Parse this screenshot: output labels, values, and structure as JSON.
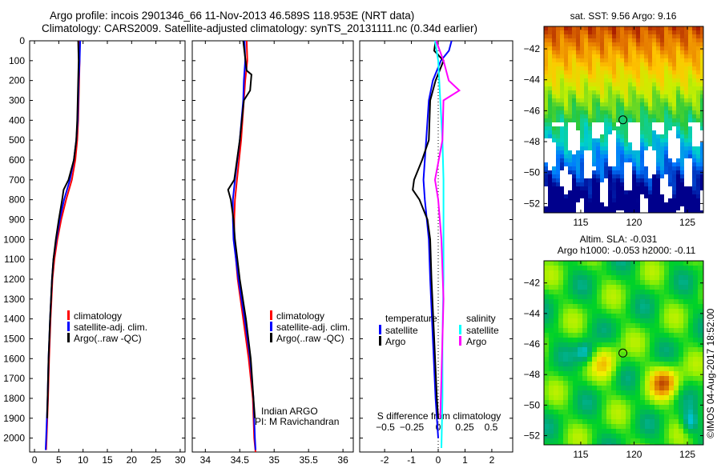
{
  "title_line1": "Argo profile: incois 2901346_66 11-Nov-2013 46.589S 118.953E (NRT data)",
  "title_line2": "Climatology: CARS2009. Satellite-adjusted climatology: synTS_20131111.nc (0.34d earlier)",
  "credit": "Indian ARGO",
  "pi": "PI: M Ravichandran",
  "watermark": "©IMOS 04-Aug-2017 18:52:00",
  "colors": {
    "climatology": "#ff0000",
    "satellite": "#0000ff",
    "argo": "#000000",
    "sal_satellite": "#00ffff",
    "sal_argo": "#ff00ff"
  },
  "chart_data": [
    {
      "type": "line",
      "id": "temperature",
      "xlabel": "temperature (deg C)",
      "ylabel": "",
      "xlim": [
        -1,
        31
      ],
      "ylim": [
        2070,
        0
      ],
      "xticks": [
        0,
        5,
        10,
        15,
        20,
        25,
        30
      ],
      "yticks": [
        0,
        100,
        200,
        300,
        400,
        500,
        600,
        700,
        800,
        900,
        1000,
        1100,
        1200,
        1300,
        1400,
        1500,
        1600,
        1700,
        1800,
        1900,
        2000
      ],
      "legend": [
        "climatology",
        "satellite-adj. clim.",
        "Argo(..raw -QC)"
      ],
      "series": [
        {
          "name": "climatology",
          "color": "#ff0000",
          "depth": [
            0,
            100,
            200,
            300,
            400,
            500,
            600,
            700,
            800,
            900,
            1000,
            1100,
            1200,
            1400,
            1600,
            1800,
            2000,
            2060
          ],
          "values": [
            9.3,
            9.3,
            9.2,
            9.1,
            9.0,
            8.8,
            8.4,
            7.7,
            6.5,
            5.5,
            4.7,
            4.1,
            3.7,
            3.3,
            3.0,
            2.8,
            2.5,
            2.4
          ]
        },
        {
          "name": "satellite-adj. clim.",
          "color": "#0000ff",
          "depth": [
            0,
            100,
            200,
            300,
            400,
            500,
            600,
            700,
            800,
            900,
            1000,
            1100,
            1200,
            1400,
            1600,
            1800,
            2000,
            2060
          ],
          "values": [
            9.4,
            9.3,
            9.1,
            9.0,
            8.9,
            8.6,
            8.1,
            7.3,
            6.1,
            5.2,
            4.5,
            3.9,
            3.6,
            3.2,
            2.9,
            2.7,
            2.4,
            2.3
          ]
        },
        {
          "name": "Argo",
          "color": "#000000",
          "depth": [
            0,
            100,
            200,
            300,
            400,
            500,
            600,
            700,
            750,
            800,
            900,
            1000,
            1100,
            1200,
            1400,
            1600,
            1800,
            1900
          ],
          "values": [
            9.0,
            9.1,
            9.0,
            8.9,
            8.8,
            8.6,
            8.1,
            7.0,
            6.0,
            5.7,
            5.0,
            4.4,
            3.9,
            3.6,
            3.2,
            2.9,
            2.7,
            2.6
          ]
        }
      ]
    },
    {
      "type": "line",
      "id": "salinity",
      "xlabel": "salinity",
      "xlim": [
        33.81,
        36.15
      ],
      "ylim": [
        2070,
        0
      ],
      "xticks": [
        34,
        34.5,
        35,
        35.5,
        36
      ],
      "legend": [
        "climatology",
        "satellite-adj. clim.",
        "Argo(..raw -QC)"
      ],
      "series": [
        {
          "name": "climatology",
          "color": "#ff0000",
          "depth": [
            0,
            100,
            200,
            300,
            500,
            700,
            800,
            900,
            1000,
            1200,
            1400,
            1600,
            1800,
            2000,
            2070
          ],
          "values": [
            34.6,
            34.61,
            34.58,
            34.56,
            34.52,
            34.46,
            34.43,
            34.42,
            34.42,
            34.47,
            34.55,
            34.63,
            34.69,
            34.71,
            34.73
          ]
        },
        {
          "name": "satellite-adj. clim.",
          "color": "#0000ff",
          "depth": [
            0,
            100,
            200,
            300,
            500,
            700,
            800,
            900,
            1000,
            1200,
            1400,
            1600,
            1800,
            2000,
            2060
          ],
          "values": [
            34.57,
            34.58,
            34.56,
            34.55,
            34.5,
            34.43,
            34.4,
            34.4,
            34.41,
            34.48,
            34.57,
            34.65,
            34.7,
            34.72,
            34.73
          ]
        },
        {
          "name": "Argo",
          "color": "#000000",
          "depth": [
            0,
            150,
            170,
            250,
            300,
            500,
            700,
            750,
            800,
            900,
            1000,
            1200,
            1400,
            1600,
            1800,
            1900
          ],
          "values": [
            34.55,
            34.6,
            34.67,
            34.65,
            34.56,
            34.5,
            34.42,
            34.33,
            34.37,
            34.41,
            34.43,
            34.5,
            34.59,
            34.66,
            34.7,
            34.72
          ]
        }
      ]
    },
    {
      "type": "line",
      "id": "difference",
      "xlabel": "T difference from climatology",
      "xlabel2": "S difference from climatology",
      "xlim": [
        -2.93,
        2.78
      ],
      "ylim": [
        2070,
        0
      ],
      "xticks": [
        -2,
        -1,
        0,
        1,
        2
      ],
      "xticks2": [
        -0.5,
        -0.25,
        0,
        0.25,
        0.5
      ],
      "legend_temp": {
        "title": "temperature",
        "items": [
          "satellite",
          "Argo"
        ]
      },
      "legend_sal": {
        "title": "salinity",
        "items": [
          "satellite",
          "Argo"
        ]
      },
      "series": [
        {
          "name": "T satellite",
          "color": "#0000ff",
          "scale": "T",
          "depth": [
            0,
            50,
            100,
            200,
            300,
            500,
            700,
            800,
            1000,
            1200,
            1500,
            1800,
            2000
          ],
          "values": [
            0.5,
            0.4,
            0.1,
            -0.2,
            -0.35,
            -0.45,
            -0.55,
            -0.5,
            -0.35,
            -0.3,
            -0.2,
            -0.1,
            0
          ]
        },
        {
          "name": "T Argo",
          "color": "#000000",
          "scale": "T",
          "depth": [
            0,
            50,
            100,
            200,
            300,
            500,
            600,
            700,
            750,
            800,
            900,
            1000,
            1200,
            1500,
            1800,
            1900
          ],
          "values": [
            -0.1,
            -0.15,
            0.2,
            -0.1,
            -0.3,
            -0.35,
            -0.6,
            -0.9,
            -0.95,
            -0.7,
            -0.4,
            -0.3,
            -0.25,
            -0.15,
            -0.05,
            0
          ]
        },
        {
          "name": "S satellite",
          "color": "#00ffff",
          "scale": "S",
          "depth": [
            0,
            100,
            300,
            500,
            700,
            900,
            1200,
            1500,
            1800,
            2050
          ],
          "values": [
            -0.03,
            0.0,
            0.02,
            0.04,
            0.05,
            0.05,
            0.05,
            0.04,
            0.04,
            0.03
          ]
        },
        {
          "name": "S Argo",
          "color": "#ff00ff",
          "scale": "S",
          "depth": [
            0,
            100,
            200,
            250,
            300,
            500,
            700,
            800,
            1000,
            1300,
            1500,
            1700,
            1900
          ],
          "values": [
            -0.02,
            0.05,
            0.1,
            0.2,
            0.05,
            0.04,
            -0.03,
            0.0,
            0.03,
            0.05,
            0.04,
            0.03,
            0.02
          ]
        }
      ]
    },
    {
      "type": "heatmap",
      "id": "sst-map",
      "title": "sat. SST: 9.56 Argo: 9.16",
      "xlim": [
        111.55,
        126.5
      ],
      "ylim": [
        -52.6,
        -40.55
      ],
      "xticks": [
        115,
        120,
        125
      ],
      "yticks": [
        -42,
        -44,
        -46,
        -48,
        -50,
        -52
      ],
      "marker": {
        "lon": 118.953,
        "lat": -46.589
      }
    },
    {
      "type": "heatmap",
      "id": "sla-map",
      "title": "Altim. SLA: -0.031",
      "subtitle": "Argo h1000: -0.053 h2000: -0.11",
      "xlim": [
        111.55,
        126.5
      ],
      "ylim": [
        -52.6,
        -40.55
      ],
      "xticks": [
        115,
        120,
        125
      ],
      "yticks": [
        -42,
        -44,
        -46,
        -48,
        -50,
        -52
      ],
      "marker": {
        "lon": 118.953,
        "lat": -46.589
      }
    }
  ]
}
